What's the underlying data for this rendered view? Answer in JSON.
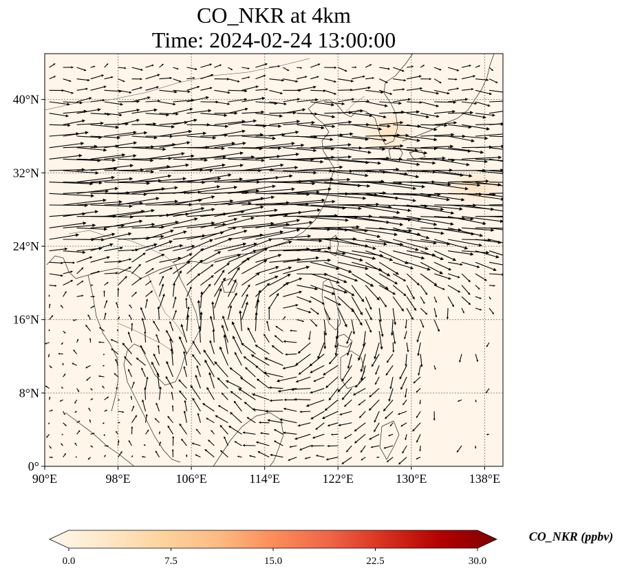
{
  "title": {
    "line1": "CO_NKR at 4km",
    "line2": "Time: 2024-02-24 13:00:00"
  },
  "map": {
    "extent": {
      "lon": [
        90,
        140
      ],
      "lat": [
        0,
        45
      ]
    },
    "lon_ticks": [
      {
        "value": 90,
        "label": "90°E"
      },
      {
        "value": 98,
        "label": "98°E"
      },
      {
        "value": 106,
        "label": "106°E"
      },
      {
        "value": 114,
        "label": "114°E"
      },
      {
        "value": 122,
        "label": "122°E"
      },
      {
        "value": 130,
        "label": "130°E"
      },
      {
        "value": 138,
        "label": "138°E"
      }
    ],
    "lat_ticks": [
      {
        "value": 0,
        "label": "0°"
      },
      {
        "value": 8,
        "label": "8°N"
      },
      {
        "value": 16,
        "label": "16°N"
      },
      {
        "value": 24,
        "label": "24°N"
      },
      {
        "value": 32,
        "label": "32°N"
      },
      {
        "value": 40,
        "label": "40°N"
      }
    ],
    "gridlines": true,
    "field_colors": {
      "background": "#fff5e9",
      "patch": "#fde2bd"
    }
  },
  "colorbar": {
    "title": "CO_NKR (ppbv)",
    "min": 0,
    "max": 30,
    "extend": "both",
    "ticks": [
      {
        "value": 0,
        "label": "0.0"
      },
      {
        "value": 7.5,
        "label": "7.5"
      },
      {
        "value": 15,
        "label": "15.0"
      },
      {
        "value": 22.5,
        "label": "22.5"
      },
      {
        "value": 30,
        "label": "30.0"
      }
    ],
    "colors": [
      "#fff7ec",
      "#fee8c8",
      "#fdd49e",
      "#fdbb84",
      "#fc8d59",
      "#ef6548",
      "#d7301f",
      "#b30000",
      "#7f0000"
    ]
  }
}
